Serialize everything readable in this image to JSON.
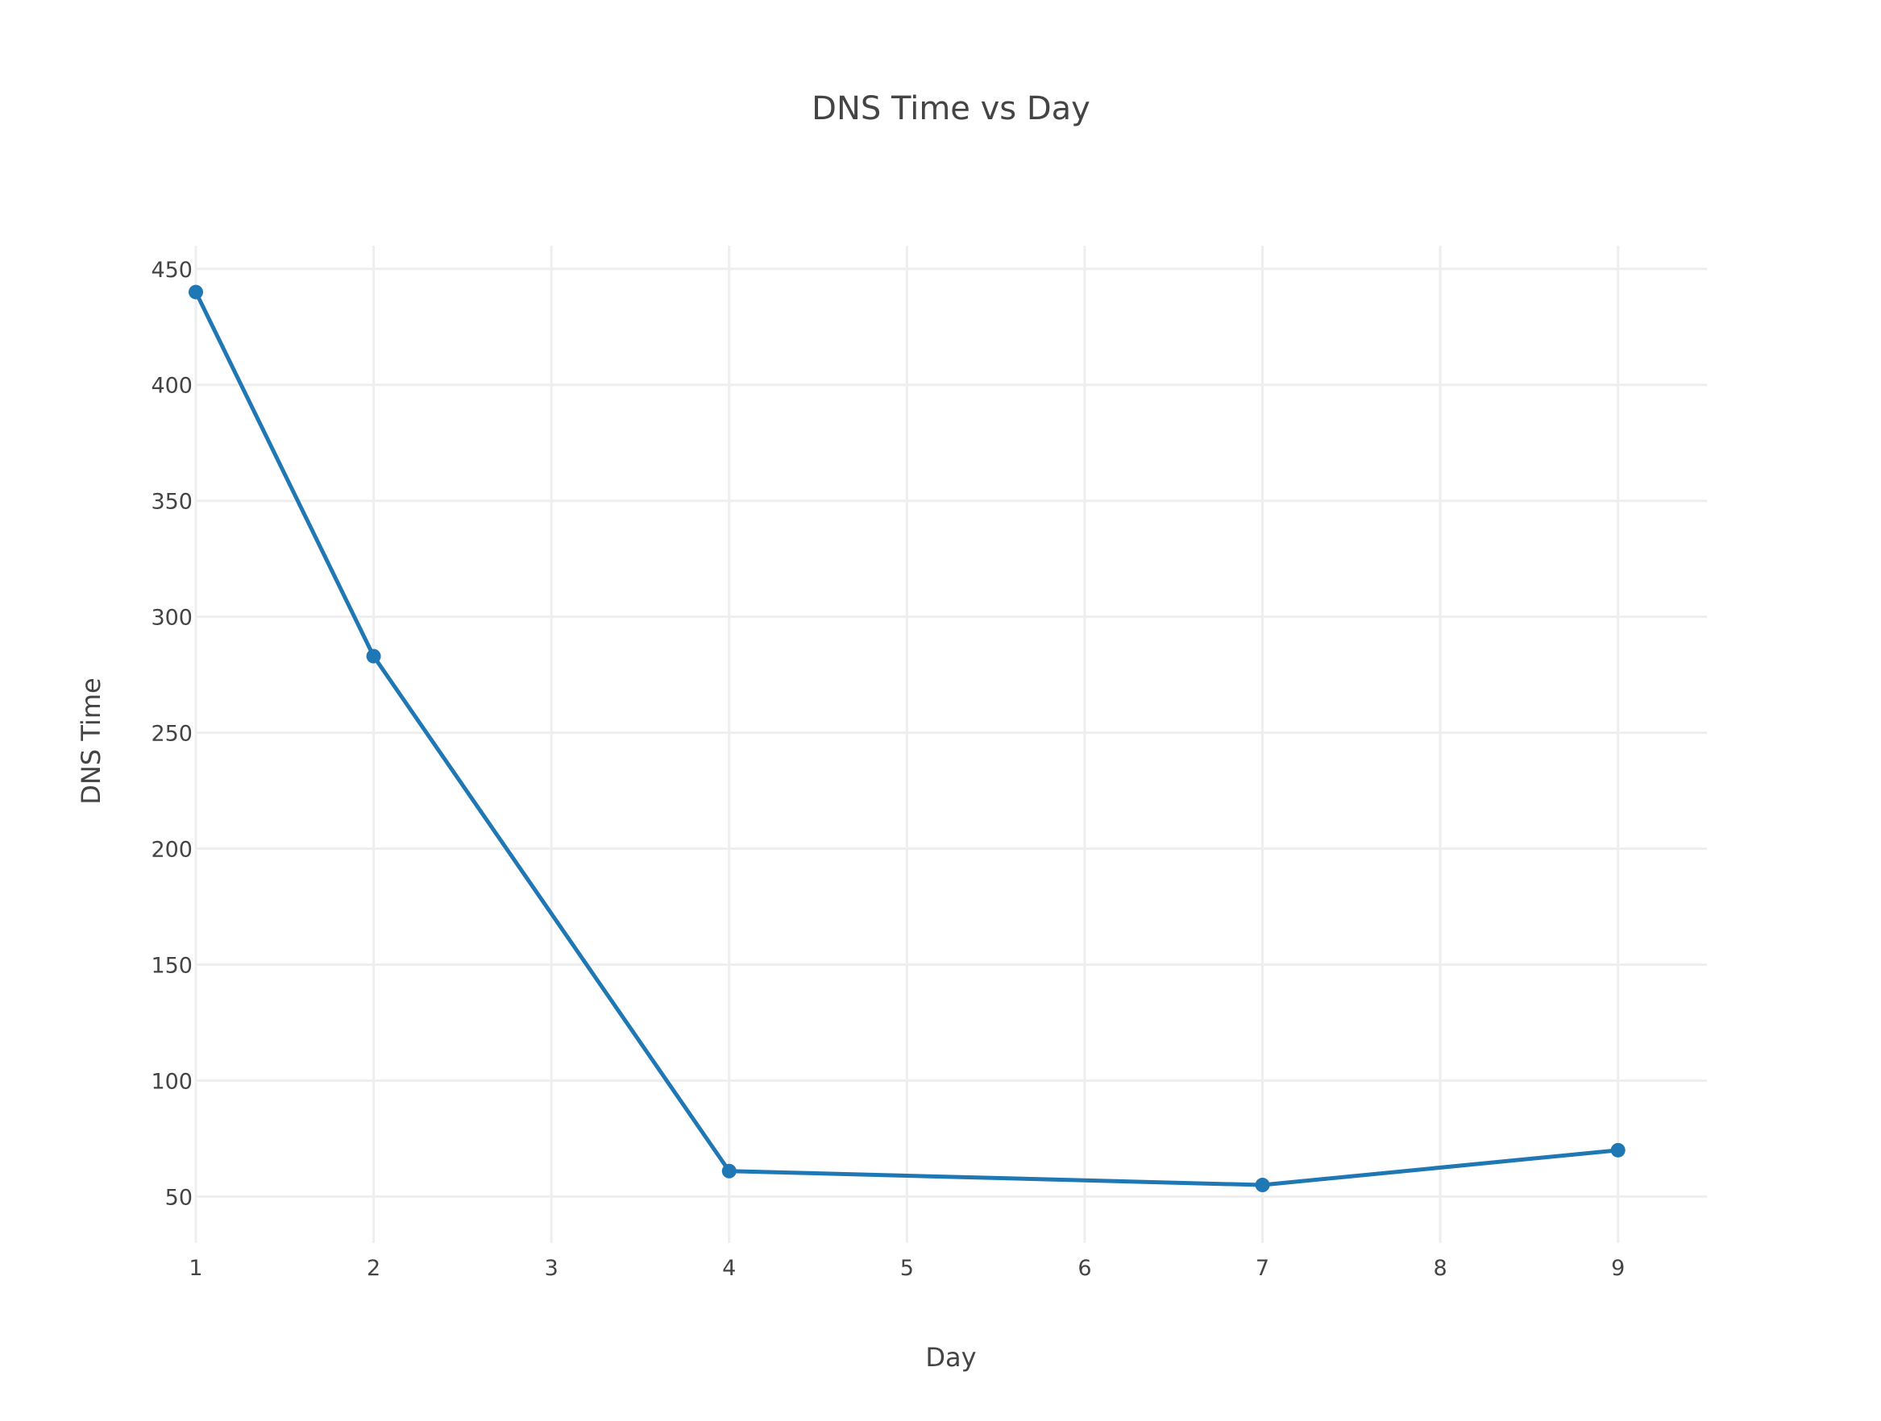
{
  "chart_data": {
    "type": "line",
    "title": "DNS Time vs Day",
    "xlabel": "Day",
    "ylabel": "DNS Time",
    "xlim": [
      1,
      9.5
    ],
    "ylim": [
      30,
      460
    ],
    "x_ticks": [
      1,
      2,
      3,
      4,
      5,
      6,
      7,
      8,
      9
    ],
    "y_ticks": [
      50,
      100,
      150,
      200,
      250,
      300,
      350,
      400,
      450
    ],
    "grid": true,
    "series": [
      {
        "color": "#1f77b4",
        "x": [
          1,
          2,
          4,
          7,
          9
        ],
        "y": [
          440,
          283,
          61,
          55,
          70
        ]
      }
    ]
  }
}
